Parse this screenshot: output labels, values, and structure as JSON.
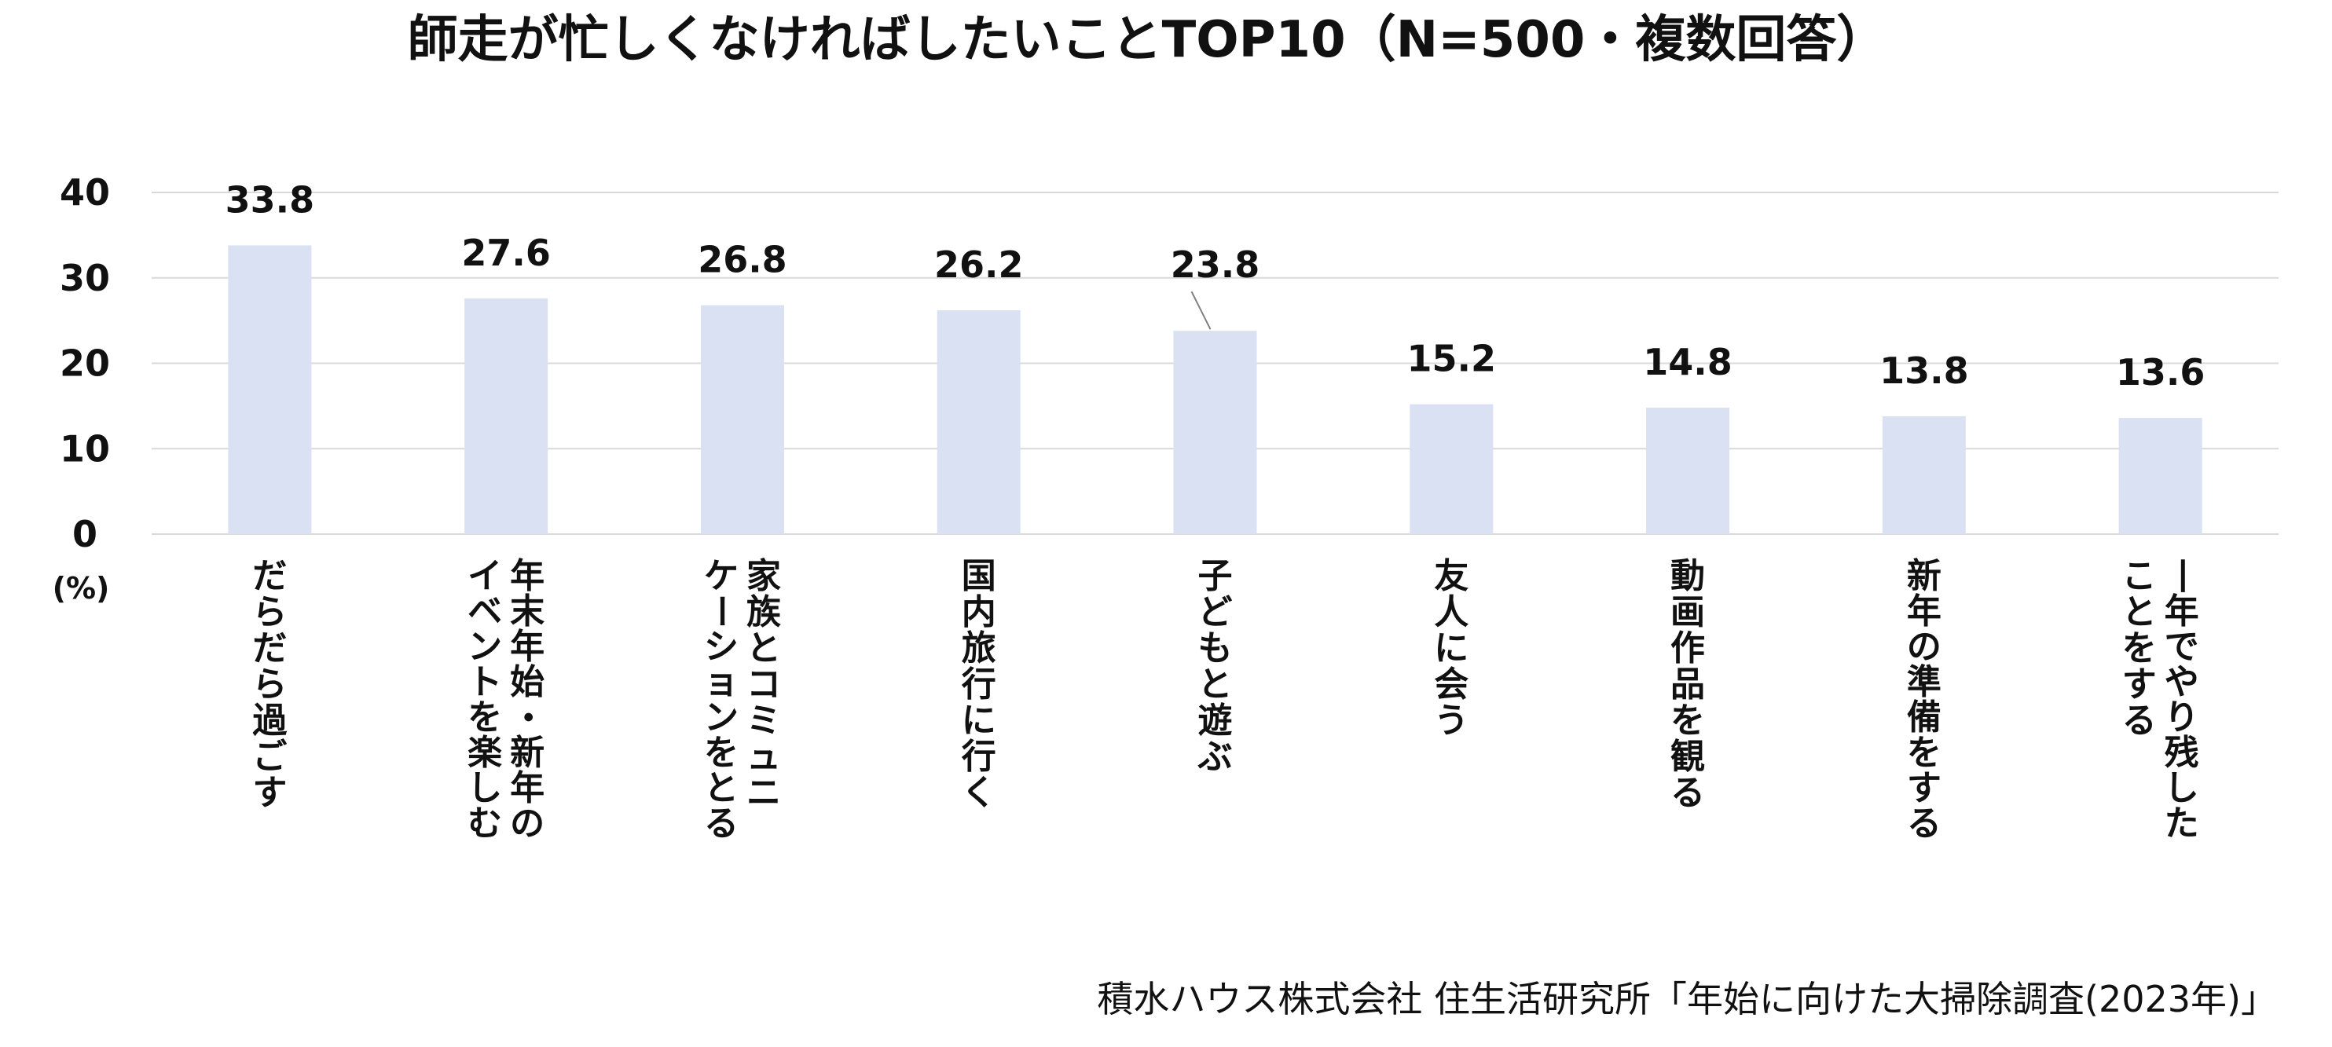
{
  "chart_data": {
    "type": "bar",
    "title": "師走が忙しくなければしたいことTOP10（N=500・複数回答）",
    "ylabel": "(%)",
    "xlabel": "",
    "ylim": [
      0,
      40
    ],
    "yticks": [
      0,
      10,
      20,
      30,
      40
    ],
    "grid": true,
    "legend": "none",
    "bar_color": "#dae1f2",
    "categories": [
      [
        "だらだら過ごす"
      ],
      [
        "年末年始・新年の",
        "イベントを楽しむ"
      ],
      [
        "家族とコミュニ",
        "ケーションをとる"
      ],
      [
        "国内旅行に行く"
      ],
      [
        "子どもと遊ぶ"
      ],
      [
        "友人に会う"
      ],
      [
        "動画作品を観る"
      ],
      [
        "新年の準備をする"
      ],
      [
        "一年でやり残した",
        "ことをする"
      ]
    ],
    "values": [
      33.8,
      27.6,
      26.8,
      26.2,
      23.8,
      15.2,
      14.8,
      13.8,
      13.6
    ],
    "value_labels": [
      "33.8",
      "27.6",
      "26.8",
      "26.2",
      "23.8",
      "15.2",
      "14.8",
      "13.8",
      "13.6"
    ]
  },
  "source": "積水ハウス株式会社 住生活研究所「年始に向けた大掃除調査(2023年)」"
}
